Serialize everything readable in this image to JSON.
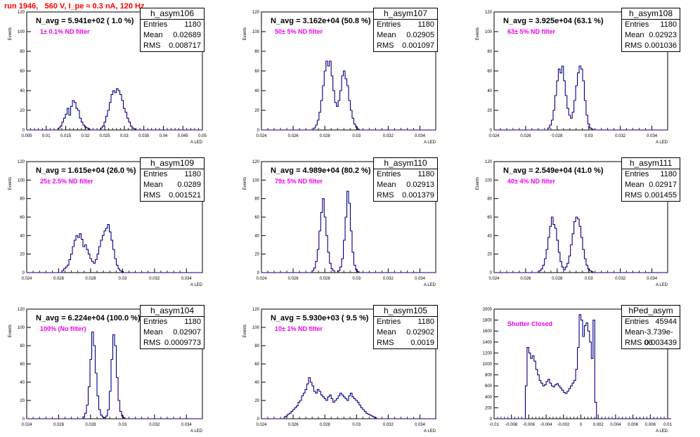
{
  "header": {
    "title": "run 1946,   560 V, I_pe ≈ 0.3 nA, 120 Hz"
  },
  "colors": {
    "title": "#ff0000",
    "hist_line": "#000080",
    "annotation": "#ee00ee",
    "frame": "#000000"
  },
  "chart_data": [
    {
      "type": "histogram",
      "name": "h_asym106",
      "navg": "N_avg = 5.941e+02 ( 1.0 %)",
      "filter": "1± 0.1% ND filter",
      "stats": {
        "entries": "1180",
        "mean": "0.02689",
        "rms": "0.008717"
      },
      "xlabel": "A_LED",
      "ylabel": "Events",
      "xlim": [
        0.005,
        0.05
      ],
      "ylim": [
        0,
        120
      ],
      "xticks": [
        "0.005",
        "0.01",
        "0.015",
        "0.02",
        "0.025",
        "0.03",
        "0.035",
        "0.04",
        "0.045",
        "0.05"
      ],
      "yticks": [
        "0",
        "20",
        "40",
        "60",
        "80",
        "100",
        "120"
      ],
      "bins_x0": 0.005,
      "bin_width": 0.00045,
      "values": [
        0,
        0,
        0,
        0,
        0,
        0,
        0,
        0,
        0,
        0,
        0,
        0,
        0,
        0,
        0,
        0,
        0,
        0,
        2,
        4,
        8,
        12,
        16,
        22,
        15,
        24,
        30,
        28,
        22,
        20,
        12,
        8,
        5,
        3,
        2,
        1,
        0,
        0,
        0,
        0,
        0,
        0,
        2,
        4,
        8,
        14,
        20,
        28,
        36,
        40,
        38,
        42,
        40,
        36,
        30,
        22,
        18,
        12,
        8,
        4,
        2,
        1,
        0,
        0,
        0,
        0,
        0,
        0,
        0,
        0,
        0,
        0,
        0,
        0,
        0,
        0,
        0,
        0,
        0,
        0,
        0,
        0,
        0,
        0,
        0,
        0,
        0,
        0,
        0,
        0,
        0,
        0,
        0,
        0,
        0,
        0,
        0,
        0,
        0,
        0
      ]
    },
    {
      "type": "histogram",
      "name": "h_asym107",
      "navg": "N_avg = 3.162e+04 (50.8 %)",
      "filter": "50± 5% ND filter",
      "stats": {
        "entries": "1180",
        "mean": "0.02905",
        "rms": "0.001097"
      },
      "xlabel": "A_LED",
      "ylabel": "Events",
      "xlim": [
        0.024,
        0.035
      ],
      "ylim": [
        0,
        120
      ],
      "xticks": [
        "0.024",
        "0.026",
        "0.028",
        "0.03",
        "0.032",
        "0.034"
      ],
      "yticks": [
        "0",
        "20",
        "40",
        "60",
        "80",
        "100",
        "120"
      ],
      "bins_x0": 0.024,
      "bin_width": 0.00011,
      "values": [
        0,
        0,
        0,
        0,
        0,
        0,
        0,
        0,
        0,
        0,
        0,
        0,
        0,
        0,
        0,
        0,
        0,
        0,
        0,
        0,
        0,
        0,
        0,
        0,
        0,
        0,
        0,
        0,
        0,
        0,
        2,
        5,
        10,
        18,
        30,
        45,
        60,
        70,
        65,
        70,
        55,
        40,
        28,
        24,
        30,
        40,
        55,
        60,
        52,
        45,
        30,
        20,
        12,
        6,
        3,
        1,
        0,
        0,
        0,
        0,
        0,
        0,
        0,
        0,
        0,
        0,
        0,
        0,
        0,
        0,
        0,
        0,
        0,
        0,
        0,
        0,
        0,
        0,
        0,
        0,
        0,
        0,
        0,
        0,
        0,
        0,
        0,
        0,
        0,
        0,
        0,
        0,
        0,
        0,
        0,
        0,
        0,
        0,
        0,
        0
      ]
    },
    {
      "type": "histogram",
      "name": "h_asym108",
      "navg": "N_avg = 3.925e+04 (63.1 %)",
      "filter": "63± 5% ND filter",
      "stats": {
        "entries": "1180",
        "mean": "0.02923",
        "rms": "0.001036"
      },
      "xlabel": "A_LED",
      "ylabel": "Events",
      "xlim": [
        0.024,
        0.035
      ],
      "ylim": [
        0,
        120
      ],
      "xticks": [
        "0.024",
        "0.026",
        "0.028",
        "0.03",
        "0.032",
        "0.034"
      ],
      "yticks": [
        "0",
        "20",
        "40",
        "60",
        "80",
        "100",
        "120"
      ],
      "bins_x0": 0.024,
      "bin_width": 0.00011,
      "values": [
        0,
        0,
        0,
        0,
        0,
        0,
        0,
        0,
        0,
        0,
        0,
        0,
        0,
        0,
        0,
        0,
        0,
        0,
        0,
        0,
        0,
        0,
        0,
        0,
        0,
        0,
        0,
        0,
        0,
        0,
        0,
        2,
        5,
        10,
        20,
        35,
        50,
        62,
        58,
        65,
        50,
        35,
        22,
        15,
        12,
        18,
        30,
        45,
        58,
        65,
        62,
        50,
        30,
        15,
        6,
        2,
        1,
        0,
        0,
        0,
        0,
        0,
        0,
        0,
        0,
        0,
        0,
        0,
        0,
        0,
        0,
        0,
        0,
        0,
        0,
        0,
        0,
        0,
        0,
        0,
        0,
        0,
        0,
        0,
        0,
        0,
        0,
        0,
        0,
        0,
        0,
        0,
        0,
        0,
        0,
        0,
        0,
        0,
        0,
        0
      ]
    },
    {
      "type": "histogram",
      "name": "h_asym109",
      "navg": "N_avg = 1.615e+04 (26.0 %)",
      "filter": "25± 2.5% ND filter",
      "stats": {
        "entries": "1180",
        "mean": "0.0289",
        "rms": "0.001521"
      },
      "xlabel": "A_LED",
      "ylabel": "Events",
      "xlim": [
        0.024,
        0.035
      ],
      "ylim": [
        0,
        120
      ],
      "xticks": [
        "0.024",
        "0.026",
        "0.028",
        "0.03",
        "0.032",
        "0.034"
      ],
      "yticks": [
        "0",
        "20",
        "40",
        "60",
        "80",
        "100",
        "120"
      ],
      "bins_x0": 0.024,
      "bin_width": 0.00011,
      "values": [
        0,
        0,
        0,
        0,
        0,
        0,
        0,
        0,
        0,
        0,
        0,
        0,
        0,
        0,
        0,
        0,
        0,
        0,
        0,
        0,
        2,
        4,
        6,
        8,
        14,
        20,
        28,
        35,
        40,
        38,
        42,
        36,
        28,
        30,
        25,
        20,
        15,
        12,
        10,
        14,
        20,
        28,
        35,
        40,
        45,
        48,
        52,
        44,
        35,
        25,
        15,
        8,
        4,
        2,
        1,
        0,
        0,
        0,
        0,
        0,
        0,
        0,
        0,
        0,
        0,
        0,
        0,
        0,
        0,
        0,
        0,
        0,
        0,
        0,
        0,
        0,
        0,
        0,
        0,
        0,
        0,
        0,
        0,
        0,
        0,
        0,
        0,
        0,
        0,
        0,
        0,
        0,
        0,
        0,
        0,
        0,
        0,
        0,
        0,
        0
      ]
    },
    {
      "type": "histogram",
      "name": "h_asym110",
      "navg": "N_avg = 4.989e+04 (80.2 %)",
      "filter": "79± 5% ND filter",
      "stats": {
        "entries": "1180",
        "mean": "0.02913",
        "rms": "0.001379"
      },
      "xlabel": "A_LED",
      "ylabel": "Events",
      "xlim": [
        0.024,
        0.035
      ],
      "ylim": [
        0,
        120
      ],
      "xticks": [
        "0.024",
        "0.026",
        "0.028",
        "0.03",
        "0.032",
        "0.034"
      ],
      "yticks": [
        "0",
        "20",
        "40",
        "60",
        "80",
        "100",
        "120"
      ],
      "bins_x0": 0.024,
      "bin_width": 0.00011,
      "values": [
        0,
        0,
        0,
        0,
        0,
        0,
        0,
        0,
        0,
        0,
        0,
        0,
        0,
        0,
        0,
        0,
        0,
        0,
        0,
        0,
        0,
        0,
        0,
        0,
        0,
        0,
        0,
        0,
        0,
        2,
        5,
        12,
        25,
        45,
        65,
        80,
        60,
        40,
        22,
        10,
        4,
        2,
        0,
        0,
        2,
        6,
        15,
        35,
        60,
        88,
        75,
        45,
        22,
        8,
        3,
        1,
        0,
        0,
        0,
        0,
        0,
        0,
        0,
        0,
        0,
        0,
        0,
        0,
        0,
        0,
        0,
        0,
        0,
        0,
        0,
        0,
        0,
        0,
        0,
        0,
        0,
        0,
        0,
        0,
        0,
        0,
        0,
        0,
        0,
        0,
        0,
        0,
        0,
        0,
        0,
        0,
        0,
        0,
        0,
        0
      ]
    },
    {
      "type": "histogram",
      "name": "h_asym111",
      "navg": "N_avg = 2.549e+04 (41.0 %)",
      "filter": "40± 4% ND filter",
      "stats": {
        "entries": "1180",
        "mean": "0.02917",
        "rms": "0.001455"
      },
      "xlabel": "A_LED",
      "ylabel": "Events",
      "xlim": [
        0.024,
        0.035
      ],
      "ylim": [
        0,
        120
      ],
      "xticks": [
        "0.024",
        "0.026",
        "0.028",
        "0.03",
        "0.032",
        "0.034"
      ],
      "yticks": [
        "0",
        "20",
        "40",
        "60",
        "80",
        "100",
        "120"
      ],
      "bins_x0": 0.024,
      "bin_width": 0.00011,
      "values": [
        0,
        0,
        0,
        0,
        0,
        0,
        0,
        0,
        0,
        0,
        0,
        0,
        0,
        0,
        0,
        0,
        0,
        0,
        0,
        0,
        0,
        0,
        0,
        0,
        0,
        0,
        2,
        4,
        8,
        15,
        25,
        38,
        50,
        60,
        52,
        48,
        35,
        22,
        12,
        6,
        3,
        6,
        10,
        18,
        30,
        42,
        55,
        60,
        58,
        50,
        38,
        25,
        15,
        8,
        4,
        2,
        1,
        0,
        0,
        0,
        0,
        0,
        0,
        0,
        0,
        0,
        0,
        0,
        0,
        0,
        0,
        0,
        0,
        0,
        0,
        0,
        0,
        0,
        0,
        0,
        0,
        0,
        0,
        0,
        0,
        0,
        0,
        0,
        0,
        0,
        0,
        0,
        0,
        0,
        0,
        0,
        0,
        0,
        0,
        0
      ]
    },
    {
      "type": "histogram",
      "name": "h_asym104",
      "navg": "N_avg = 6.224e+04 (100.0 %)",
      "filter": "100% (No filter)",
      "stats": {
        "entries": "1180",
        "mean": "0.02907",
        "rms": "0.0009773"
      },
      "xlabel": "A_LED",
      "ylabel": "Events",
      "xlim": [
        0.024,
        0.035
      ],
      "ylim": [
        0,
        120
      ],
      "xticks": [
        "0.024",
        "0.026",
        "0.028",
        "0.03",
        "0.032",
        "0.034"
      ],
      "yticks": [
        "0",
        "20",
        "40",
        "60",
        "80",
        "100",
        "120"
      ],
      "bins_x0": 0.024,
      "bin_width": 0.00011,
      "values": [
        0,
        0,
        0,
        0,
        0,
        0,
        0,
        0,
        0,
        0,
        0,
        0,
        0,
        0,
        0,
        0,
        0,
        0,
        0,
        0,
        0,
        0,
        0,
        0,
        0,
        0,
        0,
        0,
        0,
        0,
        0,
        0,
        2,
        6,
        15,
        35,
        65,
        95,
        80,
        50,
        25,
        10,
        4,
        2,
        1,
        3,
        10,
        30,
        65,
        92,
        80,
        45,
        20,
        8,
        3,
        1,
        0,
        0,
        0,
        0,
        0,
        0,
        0,
        0,
        0,
        0,
        0,
        0,
        0,
        0,
        0,
        0,
        0,
        0,
        0,
        0,
        0,
        0,
        0,
        0,
        0,
        0,
        0,
        0,
        0,
        0,
        0,
        0,
        0,
        0,
        0,
        0,
        0,
        0,
        0,
        0,
        0,
        0,
        0,
        0
      ]
    },
    {
      "type": "histogram",
      "name": "h_asym105",
      "navg": "N_avg = 5.930e+03 ( 9.5 %)",
      "filter": "10± 1% ND filter",
      "stats": {
        "entries": "1180",
        "mean": "0.02902",
        "rms": "0.0019"
      },
      "xlabel": "A_LED",
      "ylabel": "Events",
      "xlim": [
        0.024,
        0.035
      ],
      "ylim": [
        0,
        120
      ],
      "xticks": [
        "0.024",
        "0.026",
        "0.028",
        "0.03",
        "0.032",
        "0.034"
      ],
      "yticks": [
        "0",
        "20",
        "40",
        "60",
        "80",
        "100",
        "120"
      ],
      "bins_x0": 0.024,
      "bin_width": 0.00011,
      "values": [
        0,
        0,
        0,
        0,
        0,
        0,
        0,
        0,
        0,
        0,
        0,
        0,
        0,
        2,
        3,
        5,
        6,
        8,
        10,
        12,
        14,
        18,
        20,
        25,
        28,
        32,
        38,
        45,
        40,
        36,
        30,
        28,
        32,
        30,
        26,
        24,
        22,
        20,
        24,
        26,
        22,
        18,
        20,
        22,
        25,
        28,
        26,
        24,
        22,
        20,
        25,
        28,
        24,
        22,
        20,
        18,
        15,
        12,
        10,
        8,
        6,
        5,
        4,
        3,
        2,
        1,
        0,
        0,
        0,
        0,
        0,
        0,
        0,
        0,
        0,
        0,
        0,
        0,
        0,
        0,
        0,
        0,
        0,
        0,
        0,
        0,
        0,
        0,
        0,
        0,
        0,
        0,
        0,
        0,
        0,
        0,
        0,
        0,
        0,
        0
      ]
    },
    {
      "type": "histogram",
      "name": "hPed_asym",
      "navg": "",
      "filter": "Shutter Closed",
      "stats": {
        "entries": "45944",
        "mean": "-3.739e-06",
        "rms": "0.003439"
      },
      "xlabel": "A_LED",
      "ylabel": "",
      "xlim": [
        -0.01,
        0.01
      ],
      "ylim": [
        0,
        2000
      ],
      "xticks": [
        "-0.01",
        "-0.008",
        "-0.006",
        "-0.004",
        "-0.002",
        "0",
        "0.002",
        "0.004",
        "0.006",
        "0.008",
        "0.01"
      ],
      "yticks": [
        "0",
        "200",
        "400",
        "600",
        "800",
        "1000",
        "1200",
        "1400",
        "1600",
        "1800",
        "2000"
      ],
      "bins_x0": -0.01,
      "bin_width": 0.0002,
      "values": [
        0,
        0,
        0,
        0,
        0,
        0,
        0,
        0,
        0,
        0,
        0,
        0,
        0,
        0,
        0,
        0,
        0,
        0,
        600,
        1300,
        1200,
        1100,
        1150,
        1050,
        900,
        800,
        700,
        650,
        600,
        620,
        680,
        720,
        650,
        600,
        580,
        620,
        640,
        600,
        560,
        520,
        480,
        460,
        500,
        550,
        600,
        650,
        700,
        900,
        1300,
        1900,
        1800,
        1500,
        1700,
        1750,
        1600,
        1400,
        1100,
        1800,
        300,
        0,
        0,
        0,
        0,
        0,
        0,
        0,
        0,
        0,
        0,
        0,
        0,
        0,
        0,
        0,
        0,
        0,
        0,
        0,
        0,
        0,
        0,
        0,
        0,
        0,
        0,
        0,
        0,
        0,
        0,
        0,
        0,
        0,
        0,
        0,
        0,
        0,
        0,
        0,
        0,
        0,
        0,
        0
      ]
    }
  ]
}
